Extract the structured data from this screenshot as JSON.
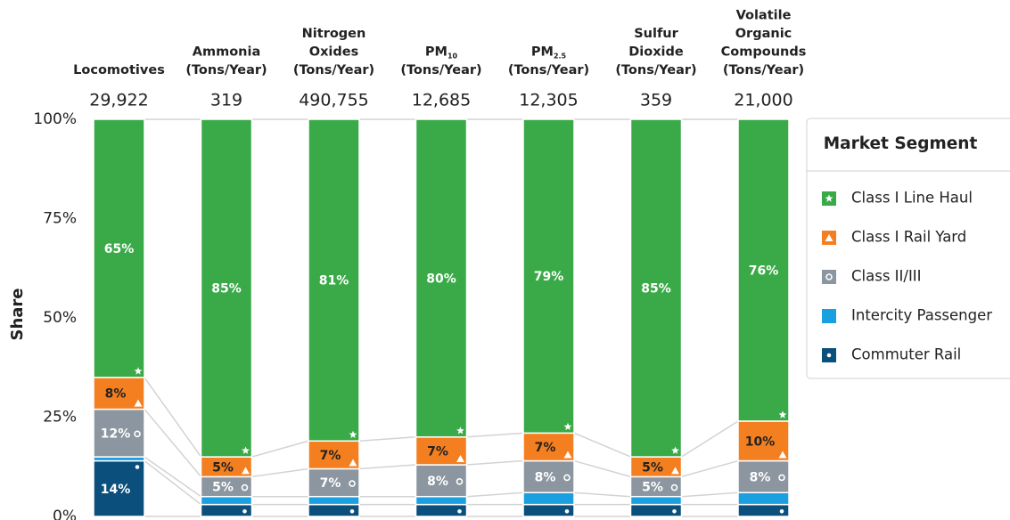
{
  "chart_data": {
    "type": "stacked_bar_100",
    "y_label": "Share",
    "legend_title": "Market Segment",
    "legend_position": "right",
    "categories": [
      [
        "Locomotives"
      ],
      [
        "Ammonia",
        "(Tons/Year)"
      ],
      [
        "Nitrogen",
        "Oxides",
        "(Tons/Year)"
      ],
      [
        {
          "main": "PM",
          "sub": "10"
        },
        "(Tons/Year)"
      ],
      [
        {
          "main": "PM",
          "sub": "2.5"
        },
        "(Tons/Year)"
      ],
      [
        "Sulfur",
        "Dioxide",
        "(Tons/Year)"
      ],
      [
        "Volatile",
        "Organic",
        "Compounds",
        "(Tons/Year)"
      ]
    ],
    "totals": [
      {
        "value": 29922,
        "label": "29,922"
      },
      {
        "value": 319,
        "label": "319"
      },
      {
        "value": 490755,
        "label": "490,755"
      },
      {
        "value": 12685,
        "label": "12,685"
      },
      {
        "value": 12305,
        "label": "12,305"
      },
      {
        "value": 359,
        "label": "359"
      },
      {
        "value": 21000,
        "label": "21,000"
      }
    ],
    "series": [
      {
        "name": "Class I Line Haul",
        "color": "#3aaa48",
        "icon": "star",
        "values": [
          65,
          85,
          81,
          80,
          79,
          85,
          76
        ],
        "value_labels": [
          "65%",
          "85%",
          "81%",
          "80%",
          "79%",
          "85%",
          "76%"
        ]
      },
      {
        "name": "Class I Rail Yard",
        "color": "#f47f20",
        "icon": "triangle",
        "values": [
          8,
          5,
          7,
          7,
          7,
          5,
          10
        ],
        "value_labels": [
          "8%",
          "5%",
          "7%",
          "7%",
          "7%",
          "5%",
          "10%"
        ]
      },
      {
        "name": "Class II/III",
        "color": "#8c96a0",
        "icon": "ring",
        "values": [
          12,
          5,
          7,
          8,
          8,
          5,
          8
        ],
        "value_labels": [
          "12%",
          "5%",
          "7%",
          "8%",
          "8%",
          "5%",
          "8%"
        ]
      },
      {
        "name": "Intercity Passenger",
        "color": "#1a9fe0",
        "icon": "none",
        "values": [
          1,
          2,
          2,
          2,
          3,
          2,
          3
        ],
        "value_labels": [
          null,
          null,
          null,
          null,
          null,
          null,
          null
        ]
      },
      {
        "name": "Commuter Rail",
        "color": "#0b4f7c",
        "icon": "dot",
        "values": [
          14,
          3,
          3,
          3,
          3,
          3,
          3
        ],
        "value_labels": [
          "14%",
          null,
          null,
          null,
          null,
          null,
          null
        ]
      }
    ],
    "ylim": [
      0,
      100
    ],
    "yticks": [
      {
        "value": 0,
        "label": "0%"
      },
      {
        "value": 25,
        "label": "25%"
      },
      {
        "value": 50,
        "label": "50%"
      },
      {
        "value": 75,
        "label": "75%"
      },
      {
        "value": 100,
        "label": "100%"
      }
    ]
  }
}
